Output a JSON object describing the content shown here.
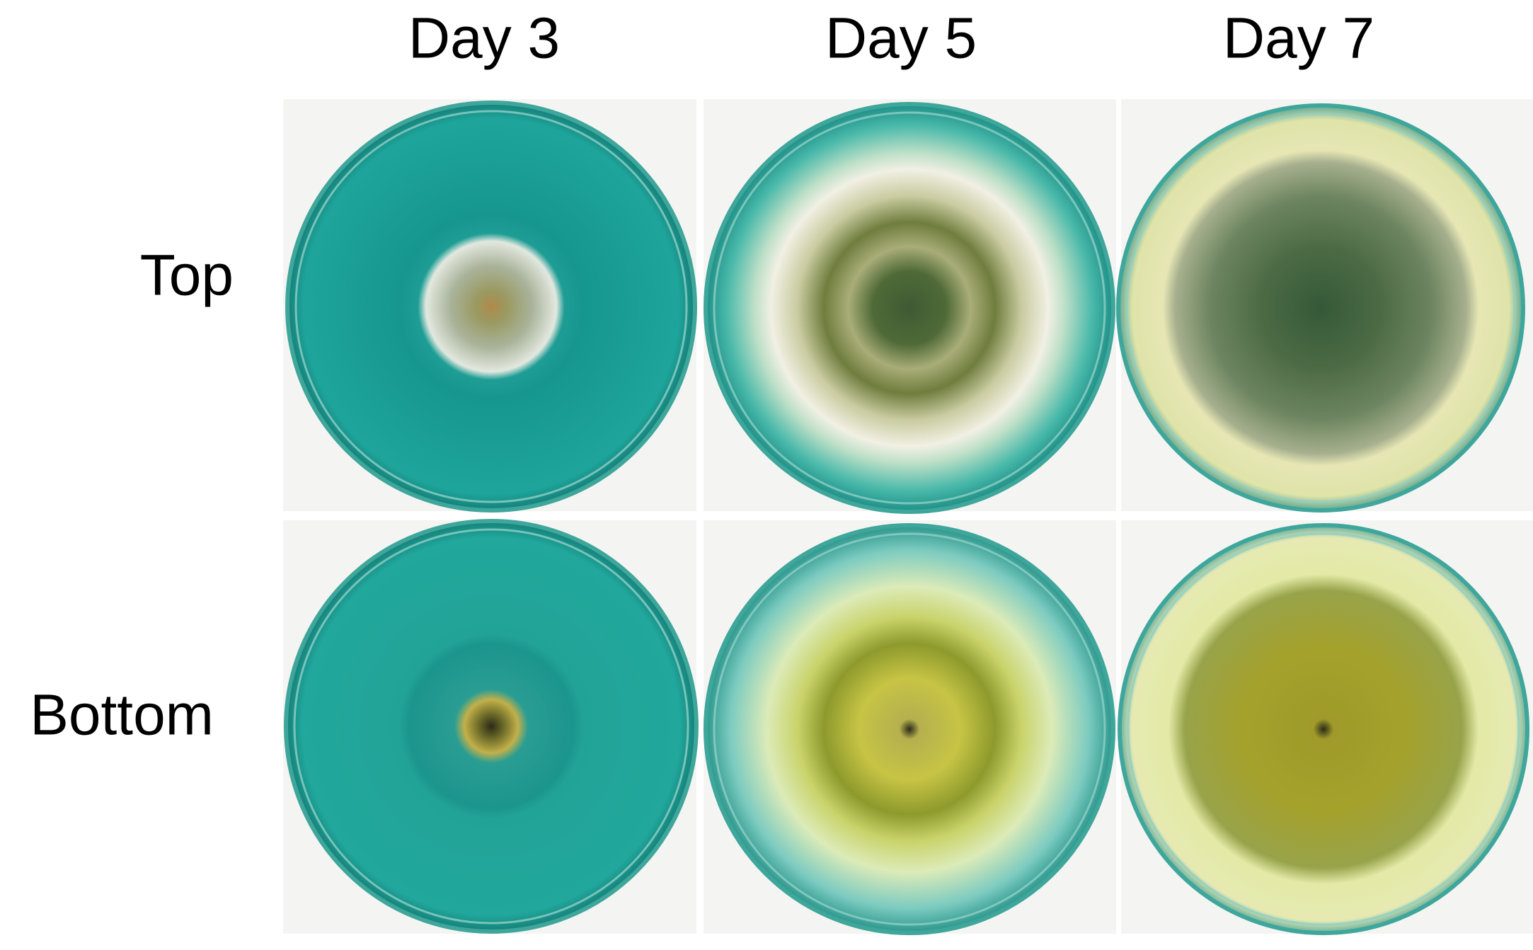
{
  "columns": [
    "Day 3",
    "Day 5",
    "Day 7"
  ],
  "rows": [
    "Top",
    "Bottom"
  ]
}
